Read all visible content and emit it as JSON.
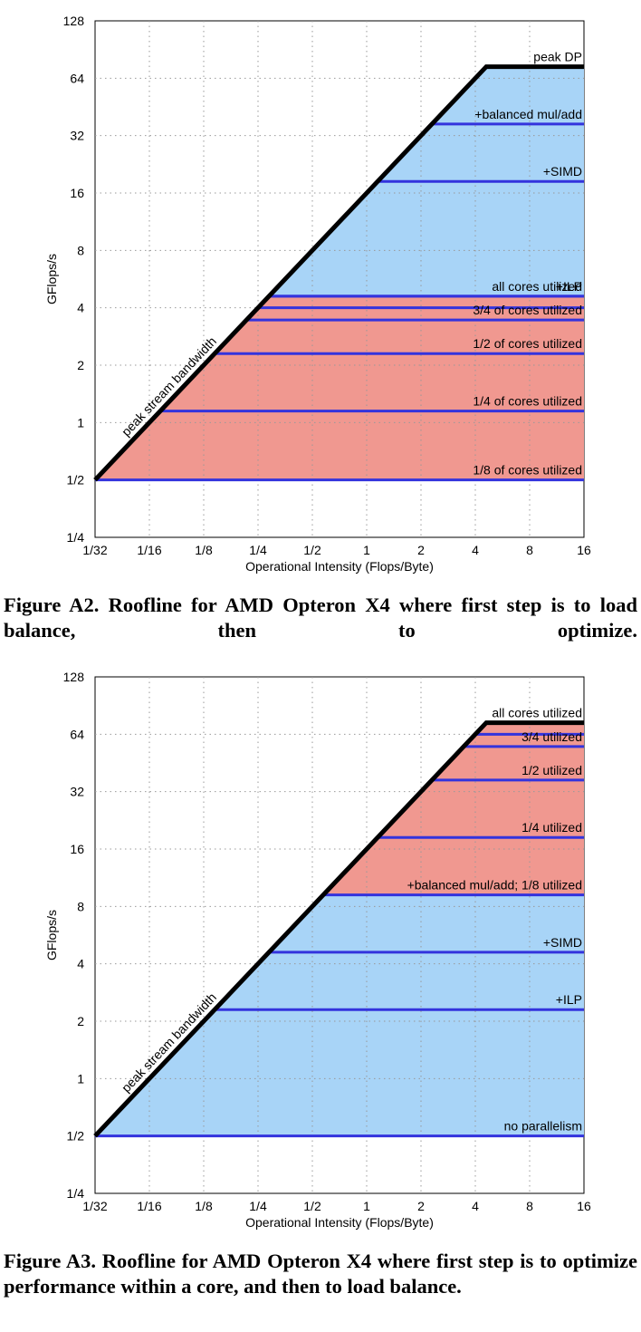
{
  "figures": [
    {
      "chart_data": {
        "type": "line",
        "xscale": "log2",
        "yscale": "log2",
        "xlabel": "Operational Intensity (Flops/Byte)",
        "ylabel": "GFlops/s",
        "xlim": [
          0.03125,
          16
        ],
        "ylim": [
          0.25,
          128
        ],
        "xticks": [
          0.03125,
          0.0625,
          0.125,
          0.25,
          0.5,
          1,
          2,
          4,
          8,
          16
        ],
        "xtick_labels": [
          "1/32",
          "1/16",
          "1/8",
          "1/4",
          "1/2",
          "1",
          "2",
          "4",
          "8",
          "16"
        ],
        "yticks": [
          0.25,
          0.5,
          1,
          2,
          4,
          8,
          16,
          32,
          64,
          128
        ],
        "ytick_labels": [
          "1/4",
          "1/2",
          "1",
          "2",
          "4",
          "8",
          "16",
          "32",
          "64",
          "128"
        ],
        "grid": true,
        "roof": {
          "peak_gflops": 73.6,
          "bandwidth_gb_s": 16.0
        },
        "regions": [
          {
            "from": 0.5,
            "to": 4.6,
            "color": "#f09890"
          },
          {
            "from": 4.6,
            "to": 73.6,
            "color": "#a8d4f7"
          }
        ],
        "ceilings": [
          {
            "value": 73.6,
            "label": "peak DP",
            "roof": true
          },
          {
            "value": 36.8,
            "label": "+balanced mul/add"
          },
          {
            "value": 18.4,
            "label": "+SIMD"
          },
          {
            "value": 4.6,
            "label": "+ILP"
          },
          {
            "value": 4.6,
            "label": "all cores utilized"
          },
          {
            "value": 4.0,
            "label": ""
          },
          {
            "value": 3.45,
            "label": "3/4 of cores utilized"
          },
          {
            "value": 2.3,
            "label": "1/2 of cores utilized"
          },
          {
            "value": 1.15,
            "label": "1/4 of cores utilized"
          },
          {
            "value": 0.5,
            "label": "1/8 of cores utilized"
          }
        ],
        "slope_label": "peak stream bandwidth"
      }
    },
    {
      "chart_data": {
        "type": "line",
        "xscale": "log2",
        "yscale": "log2",
        "xlabel": "Operational Intensity (Flops/Byte)",
        "ylabel": "GFlops/s",
        "xlim": [
          0.03125,
          16
        ],
        "ylim": [
          0.25,
          128
        ],
        "xticks": [
          0.03125,
          0.0625,
          0.125,
          0.25,
          0.5,
          1,
          2,
          4,
          8,
          16
        ],
        "xtick_labels": [
          "1/32",
          "1/16",
          "1/8",
          "1/4",
          "1/2",
          "1",
          "2",
          "4",
          "8",
          "16"
        ],
        "yticks": [
          0.25,
          0.5,
          1,
          2,
          4,
          8,
          16,
          32,
          64,
          128
        ],
        "ytick_labels": [
          "1/4",
          "1/2",
          "1",
          "2",
          "4",
          "8",
          "16",
          "32",
          "64",
          "128"
        ],
        "grid": true,
        "roof": {
          "peak_gflops": 73.6,
          "bandwidth_gb_s": 16.0
        },
        "regions": [
          {
            "from": 0.5,
            "to": 9.2,
            "color": "#a8d4f7"
          },
          {
            "from": 9.2,
            "to": 73.6,
            "color": "#f09890"
          }
        ],
        "ceilings": [
          {
            "value": 73.6,
            "label": "all cores utilized",
            "roof": true
          },
          {
            "value": 64.0,
            "label": ""
          },
          {
            "value": 55.2,
            "label": "3/4 utilized"
          },
          {
            "value": 36.8,
            "label": "1/2 utilized"
          },
          {
            "value": 18.4,
            "label": "1/4 utilized"
          },
          {
            "value": 9.2,
            "label": "+balanced mul/add; 1/8 utilized"
          },
          {
            "value": 4.6,
            "label": "+SIMD"
          },
          {
            "value": 2.3,
            "label": "+ILP"
          },
          {
            "value": 0.5,
            "label": "no parallelism"
          }
        ],
        "slope_label": "peak stream bandwidth"
      }
    }
  ],
  "captions": [
    "Figure A2. Roofline for AMD Opteron X4 where first step is to load balance, then to optimize.",
    "Figure A3. Roofline for AMD Opteron X4 where first step is to optimize performance within a core, and then to load balance."
  ],
  "colors": {
    "roof": "#000000",
    "ceiling_line": "#3333dd",
    "grid": "#999999",
    "parallel_region": "#f09890",
    "core_region": "#a8d4f7"
  }
}
